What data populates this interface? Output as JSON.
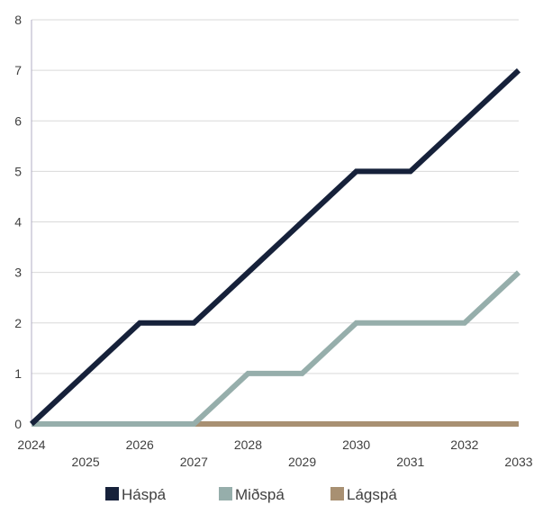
{
  "chart_data": {
    "type": "line",
    "title": "",
    "xlabel": "",
    "ylabel": "",
    "categories": [
      "2024",
      "2025",
      "2026",
      "2027",
      "2028",
      "2029",
      "2030",
      "2031",
      "2032",
      "2033"
    ],
    "ylim": [
      0,
      8
    ],
    "yticks": [
      "0",
      "1",
      "2",
      "3",
      "4",
      "5",
      "6",
      "7",
      "8"
    ],
    "grid": true,
    "legend_position": "bottom",
    "series": [
      {
        "name": "Háspá",
        "color": "#16213a",
        "values": [
          0,
          1,
          2,
          2,
          3,
          4,
          5,
          5,
          6,
          7
        ]
      },
      {
        "name": "Miðspá",
        "color": "#96aeab",
        "values": [
          0,
          0,
          0,
          0,
          1,
          1,
          2,
          2,
          2,
          3
        ]
      },
      {
        "name": "Lágspá",
        "color": "#a89072",
        "values": [
          0,
          0,
          0,
          0,
          0,
          0,
          0,
          0,
          0,
          0
        ]
      }
    ]
  }
}
